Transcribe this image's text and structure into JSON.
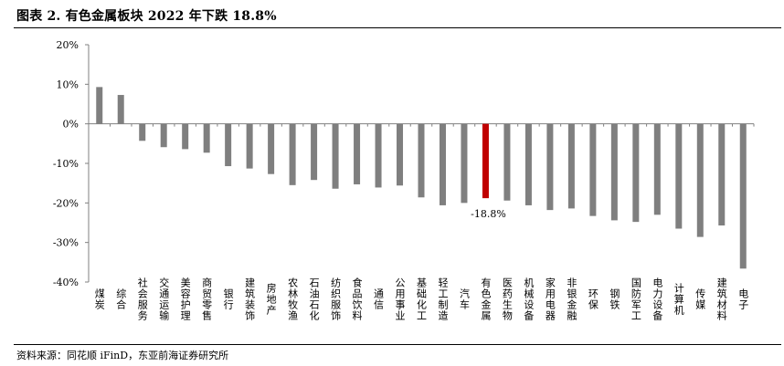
{
  "figure": {
    "title": "图表 2.   有色金属板块 2022 年下跌 18.8%",
    "source": "资料来源：同花顺 iFinD，东亚前海证券研究所"
  },
  "colors": {
    "bar": "#7f7f7f",
    "highlight": "#c00000",
    "axis": "#808080",
    "text": "#000000"
  },
  "chart_data": {
    "type": "bar",
    "title": "有色金属板块 2022 年下跌 18.8%",
    "xlabel": "",
    "ylabel": "",
    "ylim": [
      -40,
      20
    ],
    "yticks": [
      20,
      10,
      0,
      -10,
      -20,
      -30,
      -40
    ],
    "ytick_labels": [
      "20%",
      "10%",
      "0%",
      "-10%",
      "-20%",
      "-30%",
      "-40%"
    ],
    "grid": false,
    "legend": "none",
    "highlight_category": "有色金属",
    "annotation": {
      "category": "有色金属",
      "text": "-18.8%"
    },
    "categories": [
      "煤炭",
      "综合",
      "社会服务",
      "交通运输",
      "美容护理",
      "商贸零售",
      "银行",
      "建筑装饰",
      "房地产",
      "农林牧渔",
      "石油石化",
      "纺织服饰",
      "食品饮料",
      "通信",
      "公用事业",
      "基础化工",
      "轻工制造",
      "汽车",
      "有色金属",
      "医药生物",
      "机械设备",
      "家用电器",
      "非银金融",
      "环保",
      "钢铁",
      "国防军工",
      "电力设备",
      "计算机",
      "传媒",
      "建筑材料",
      "电子"
    ],
    "values": [
      9.3,
      7.3,
      -4.3,
      -5.9,
      -6.4,
      -7.3,
      -10.7,
      -11.3,
      -12.7,
      -15.5,
      -14.2,
      -16.4,
      -15.3,
      -16.1,
      -15.6,
      -18.6,
      -20.6,
      -20.0,
      -18.8,
      -19.4,
      -20.6,
      -21.8,
      -21.4,
      -23.3,
      -24.4,
      -24.8,
      -23.0,
      -26.5,
      -28.6,
      -25.7,
      -36.6
    ]
  }
}
